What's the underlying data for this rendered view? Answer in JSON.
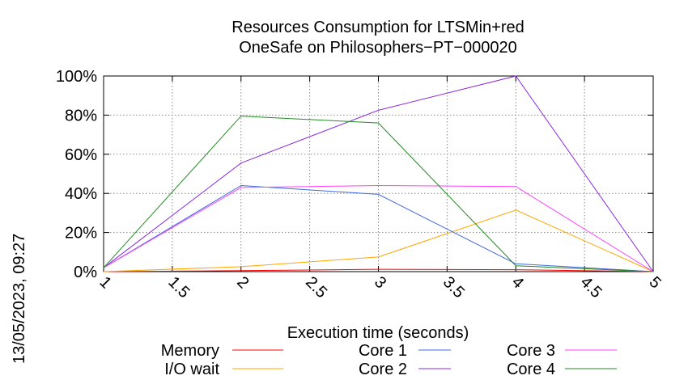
{
  "timestamp": "13/05/2023, 09:27",
  "chart_data": {
    "type": "line",
    "title": [
      "Resources Consumption for LTSMin+red",
      "OneSafe on Philosophers−PT−000020"
    ],
    "xlabel": "Execution time (seconds)",
    "ylabel": "",
    "xlim": [
      1,
      5
    ],
    "ylim": [
      0,
      100
    ],
    "x_ticks": [
      "1",
      "1.5",
      "2",
      "2.5",
      "3",
      "3.5",
      "4",
      "4.5",
      "5"
    ],
    "y_ticks": [
      "0%",
      "20%",
      "40%",
      "60%",
      "80%",
      "100%"
    ],
    "grid": true,
    "legend_position": "bottom",
    "x": [
      1,
      2,
      3,
      4,
      5
    ],
    "series": [
      {
        "name": "Memory",
        "color": "#ff0000",
        "values": [
          0,
          0.5,
          1.2,
          1.0,
          0
        ]
      },
      {
        "name": "I/O wait",
        "color": "#ffa500",
        "values": [
          0,
          2.5,
          7.5,
          31.5,
          0
        ]
      },
      {
        "name": "Core 1",
        "color": "#4169e1",
        "values": [
          2,
          44,
          39.5,
          4,
          0
        ]
      },
      {
        "name": "Core 2",
        "color": "#8a2be2",
        "values": [
          2,
          55.5,
          82.5,
          100,
          0
        ]
      },
      {
        "name": "Core 3",
        "color": "#ff40ff",
        "values": [
          2,
          43,
          44,
          43.5,
          0
        ]
      },
      {
        "name": "Core 4",
        "color": "#228b22",
        "values": [
          2,
          79.5,
          76,
          3,
          0
        ]
      }
    ]
  }
}
